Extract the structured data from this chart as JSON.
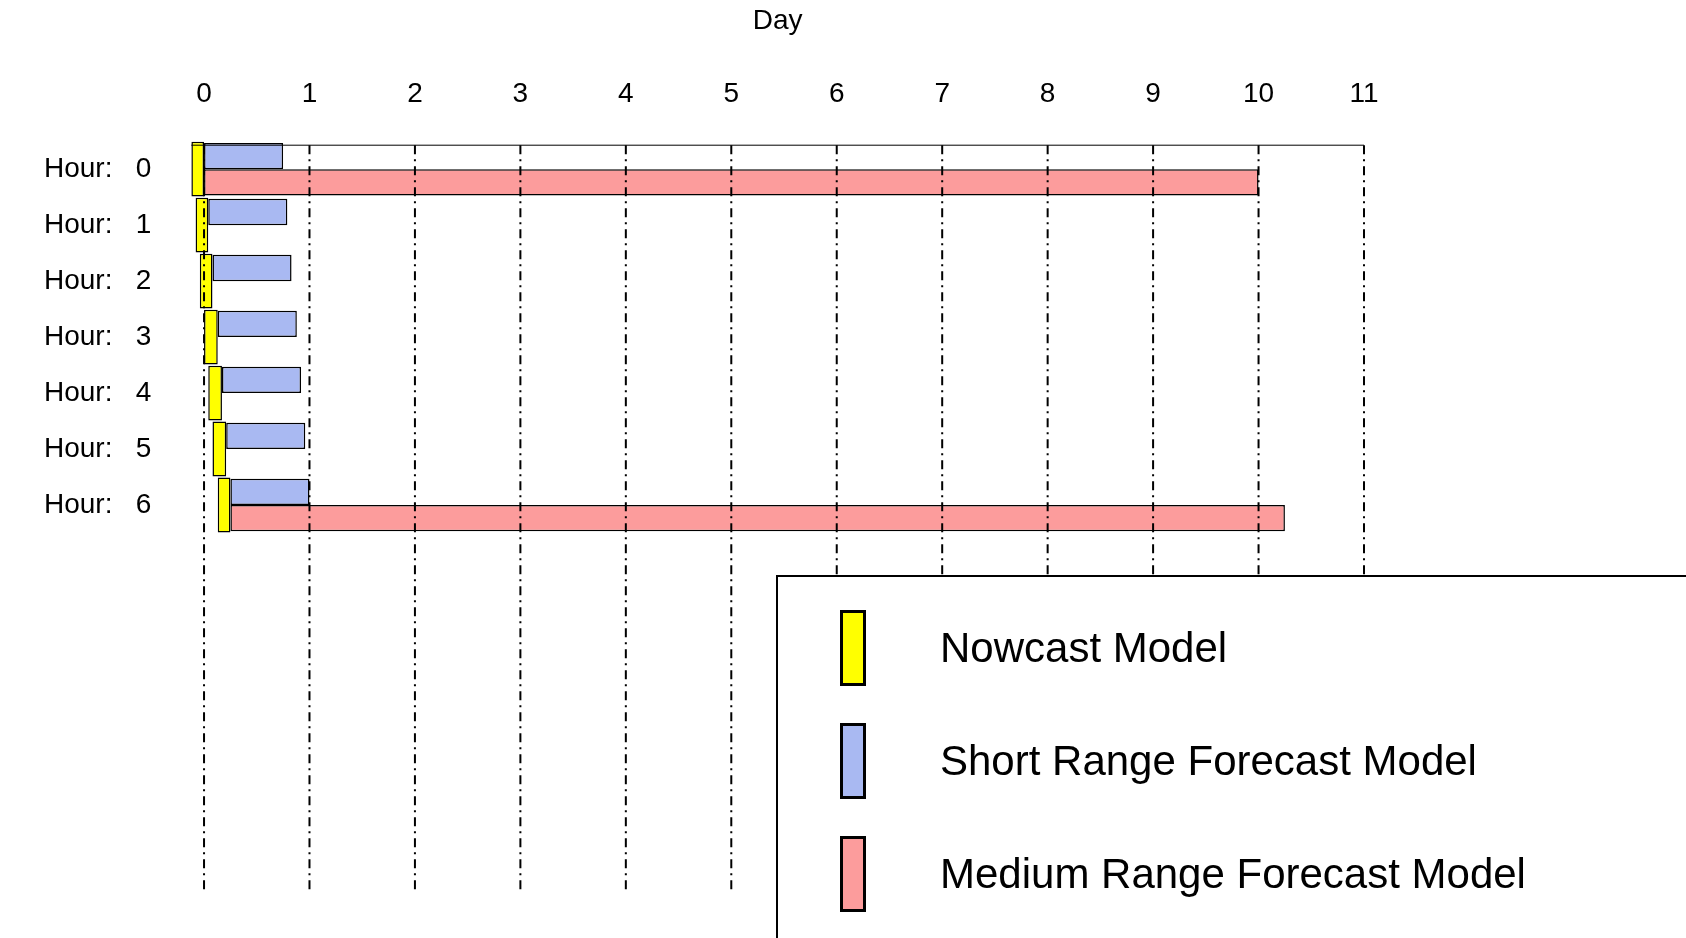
{
  "chart_data": {
    "type": "bar",
    "orientation": "horizontal",
    "xlabel": "Day",
    "categories": [
      "Hour:   0",
      "Hour:   1",
      "Hour:   2",
      "Hour:   3",
      "Hour:   4",
      "Hour:   5",
      "Hour:   6"
    ],
    "series": [
      {
        "name": "Nowcast Model",
        "color": "#ffff00",
        "base": [
          -0.12,
          -0.08,
          -0.04,
          0,
          0.04,
          0.08,
          0.13
        ],
        "values": [
          0.12,
          0.12,
          0.12,
          0.13,
          0.13,
          0.13,
          0.12
        ]
      },
      {
        "name": "Short Range Forecast Model",
        "color": "#a9b9f2",
        "base": [
          0,
          0.04,
          0.08,
          0.13,
          0.17,
          0.21,
          0.25
        ],
        "values": [
          0.75,
          0.75,
          0.75,
          0.75,
          0.75,
          0.75,
          0.75
        ]
      },
      {
        "name": "Medium Range Forecast Model",
        "color": "#fc9c9c",
        "base": [
          0,
          null,
          null,
          null,
          null,
          null,
          0.25
        ],
        "values": [
          10,
          null,
          null,
          null,
          null,
          null,
          10
        ]
      }
    ],
    "xlim": [
      -0.12,
      11
    ],
    "xticks": [
      0,
      1,
      2,
      3,
      4,
      5,
      6,
      7,
      8,
      9,
      10,
      11
    ],
    "grid": "x",
    "legend": "bottom right"
  }
}
